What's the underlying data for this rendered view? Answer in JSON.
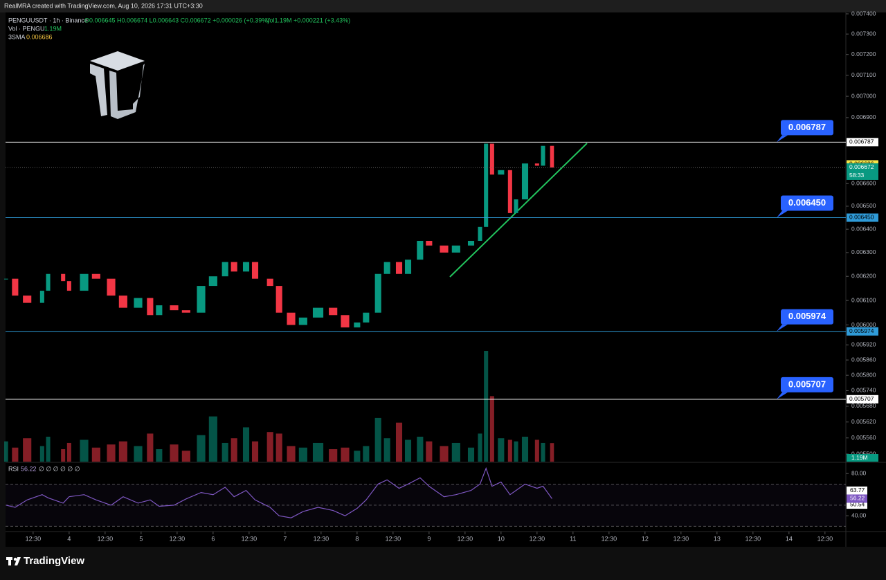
{
  "header": {
    "credit": "RealMRA created with TradingView.com, Aug 10, 2026 17:31 UTC+3:30"
  },
  "chart_data": {
    "type": "candlestick",
    "symbol": "PENGUUSDT · 1h · Binance",
    "ohlc": "O0.006645 H0.006674 L0.006643 C0.006672 +0.000026 (+0.39%)",
    "volume_legend": "Vol · PENGU",
    "volume_legend_value": "1.19M",
    "volume_change": "Vol1.19M +0.000221 (+3.43%)",
    "sma_legend": "3SMA",
    "sma_legend_value": "0.006686",
    "up_color": "#089981",
    "down_color": "#f23645",
    "x": [
      -21,
      -18,
      -14,
      -9,
      -7,
      -2,
      0,
      5,
      9,
      14,
      18,
      23,
      27,
      30,
      35,
      39,
      44,
      48,
      52,
      55,
      59,
      62,
      67,
      70,
      74,
      78,
      83,
      88,
      92,
      96,
      99,
      103,
      106,
      110,
      113,
      117,
      120,
      125,
      129,
      134,
      137,
      139,
      141,
      144,
      147,
      149,
      152,
      156,
      158,
      161
    ],
    "values": [
      0.00619,
      0.00612,
      0.00609,
      0.00614,
      0.00621,
      0.00618,
      0.00614,
      0.00621,
      0.00619,
      0.00612,
      0.00607,
      0.00611,
      0.00604,
      0.00608,
      0.00606,
      0.00605,
      0.00616,
      0.0062,
      0.00626,
      0.00622,
      0.00626,
      0.00619,
      0.00616,
      0.00605,
      0.006,
      0.00603,
      0.00607,
      0.00604,
      0.00599,
      0.00601,
      0.00605,
      0.00621,
      0.00626,
      0.00621,
      0.00627,
      0.00635,
      0.00633,
      0.0063,
      0.00633,
      0.00635,
      0.00641,
      0.00678,
      0.00664,
      0.00666,
      0.00647,
      0.00653,
      0.00669,
      0.00668,
      0.00677,
      0.006672
    ],
    "volume": [
      1300000,
      900000,
      1500000,
      1000000,
      1600000,
      800000,
      1200000,
      1400000,
      900000,
      1100000,
      1300000,
      1000000,
      1800000,
      800000,
      1100000,
      700000,
      1700000,
      2900000,
      1200000,
      1500000,
      2200000,
      1300000,
      1900000,
      1800000,
      1000000,
      900000,
      1200000,
      800000,
      900000,
      700000,
      1000000,
      2800000,
      1500000,
      2500000,
      1400000,
      1600000,
      1300000,
      1000000,
      1200000,
      900000,
      1800000,
      7100000,
      4200000,
      1500000,
      1400000,
      1300000,
      1600000,
      1400000,
      1200000,
      1190000
    ],
    "volume_last": {
      "value": 1190000,
      "label": "1.19M"
    },
    "ylim": [
      0.0055,
      0.0074
    ],
    "log_scale": true,
    "yticks": [
      {
        "value": 0.0074,
        "label": "0.007400"
      },
      {
        "value": 0.0073,
        "label": "0.007300"
      },
      {
        "value": 0.0072,
        "label": "0.007200"
      },
      {
        "value": 0.0071,
        "label": "0.007100"
      },
      {
        "value": 0.007,
        "label": "0.007000"
      },
      {
        "value": 0.0069,
        "label": "0.006900"
      },
      {
        "value": 0.0066,
        "label": "0.006600"
      },
      {
        "value": 0.0065,
        "label": "0.006500"
      },
      {
        "value": 0.0064,
        "label": "0.006400"
      },
      {
        "value": 0.0063,
        "label": "0.006300"
      },
      {
        "value": 0.0062,
        "label": "0.006200"
      },
      {
        "value": 0.0061,
        "label": "0.006100"
      },
      {
        "value": 0.006,
        "label": "0.006000"
      },
      {
        "value": 0.00592,
        "label": "0.005920"
      },
      {
        "value": 0.00586,
        "label": "0.005860"
      },
      {
        "value": 0.0058,
        "label": "0.005800"
      },
      {
        "value": 0.00574,
        "label": "0.005740"
      },
      {
        "value": 0.00568,
        "label": "0.005680"
      },
      {
        "value": 0.00562,
        "label": "0.005620"
      },
      {
        "value": 0.00556,
        "label": "0.005560"
      },
      {
        "value": 0.0055,
        "label": "0.005500"
      }
    ],
    "xlim": [
      -21.2,
      258.5
    ],
    "xticks": [
      {
        "value": -12,
        "label": "12:30"
      },
      {
        "value": 0,
        "label": "4"
      },
      {
        "value": 12,
        "label": "12:30"
      },
      {
        "value": 24,
        "label": "5"
      },
      {
        "value": 36,
        "label": "12:30"
      },
      {
        "value": 48,
        "label": "6"
      },
      {
        "value": 60,
        "label": "12:30"
      },
      {
        "value": 72,
        "label": "7"
      },
      {
        "value": 84,
        "label": "12:30"
      },
      {
        "value": 96,
        "label": "8"
      },
      {
        "value": 108,
        "label": "12:30"
      },
      {
        "value": 120,
        "label": "9"
      },
      {
        "value": 132,
        "label": "12:30"
      },
      {
        "value": 144,
        "label": "10"
      },
      {
        "value": 156,
        "label": "12:30"
      },
      {
        "value": 168,
        "label": "11"
      },
      {
        "value": 180,
        "label": "12:30"
      },
      {
        "value": 192,
        "label": "12"
      },
      {
        "value": 204,
        "label": "12:30"
      },
      {
        "value": 216,
        "label": "13"
      },
      {
        "value": 228,
        "label": "12:30"
      },
      {
        "value": 240,
        "label": "14"
      },
      {
        "value": 252,
        "label": "12:30"
      }
    ],
    "levels": [
      {
        "value": 0.006787,
        "label": "0.006787",
        "color": "#ffffff"
      },
      {
        "value": 0.00645,
        "label": "0.006450",
        "color": "#2f9bd8"
      },
      {
        "value": 0.005974,
        "label": "0.005974",
        "color": "#2f9bd8"
      },
      {
        "value": 0.005707,
        "label": "0.005707",
        "color": "#ffffff"
      }
    ],
    "last_price": {
      "value": 0.006672,
      "label": "0.006672"
    },
    "countdown": "58:33",
    "sma_last": {
      "value": 0.006686,
      "label": "0.006686"
    },
    "rsi": {
      "title": "RSI",
      "value": 56.22,
      "label": "56.22",
      "placeholders": "∅ ∅ ∅ ∅ ∅ ∅",
      "color": "#7e57c2",
      "ylim": [
        27,
        88
      ],
      "yticks": [
        {
          "value": 80,
          "label": "80.00"
        },
        {
          "value": 40,
          "label": "40.00"
        }
      ],
      "bands": [
        70,
        50,
        30
      ],
      "tags": [
        {
          "value": 63.77,
          "label": "63.77"
        },
        {
          "value": 50.54,
          "label": "50.54"
        }
      ],
      "values": [
        50,
        48,
        55,
        60,
        57,
        52,
        58,
        60,
        55,
        50,
        58,
        52,
        55,
        49,
        50,
        56,
        62,
        60,
        67,
        58,
        64,
        55,
        48,
        40,
        38,
        44,
        48,
        45,
        40,
        47,
        55,
        70,
        74,
        66,
        70,
        76,
        68,
        58,
        60,
        64,
        70,
        85,
        68,
        72,
        60,
        64,
        70,
        66,
        68,
        56.22
      ]
    }
  },
  "footer": {
    "brand": "TradingView"
  }
}
